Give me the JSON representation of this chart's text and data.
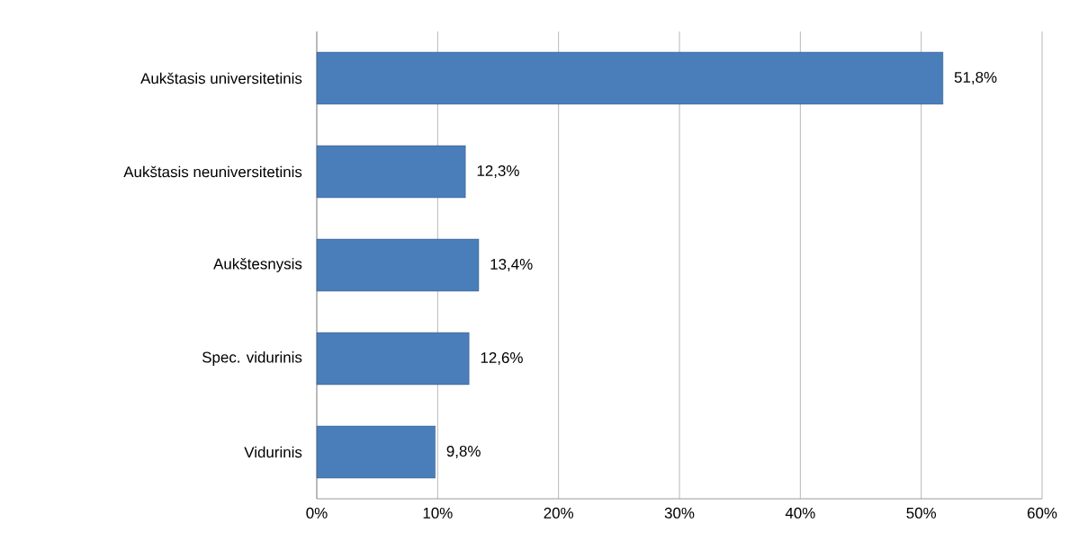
{
  "chart_data": {
    "type": "bar",
    "orientation": "horizontal",
    "categories": [
      "Aukštasis universitetinis",
      "Aukštasis neuniversitetinis",
      "Aukštesnysis",
      "Spec. vidurinis",
      "Vidurinis"
    ],
    "values": [
      51.8,
      12.3,
      13.4,
      12.6,
      9.8
    ],
    "value_labels": [
      "51,8%",
      "12,3%",
      "13,4%",
      "12,6%",
      "9,8%"
    ],
    "color": "#4a7ebb",
    "xlim": [
      0,
      60
    ],
    "xticks": [
      {
        "value": 0,
        "label": "0%"
      },
      {
        "value": 10,
        "label": "10%"
      },
      {
        "value": 20,
        "label": "20%"
      },
      {
        "value": 30,
        "label": "30%"
      },
      {
        "value": 40,
        "label": "40%"
      },
      {
        "value": 50,
        "label": "50%"
      },
      {
        "value": 60,
        "label": "60%"
      }
    ],
    "grid": "x"
  }
}
